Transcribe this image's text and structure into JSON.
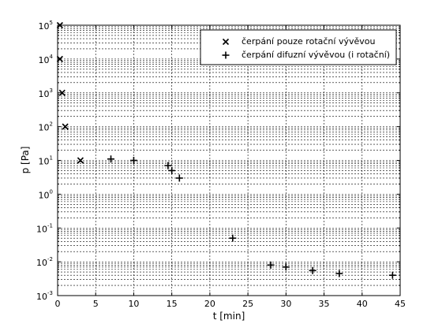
{
  "chart_data": {
    "type": "scatter",
    "title": "",
    "xlabel": "t [min]",
    "ylabel": "p [Pa]",
    "xlim": [
      0,
      45
    ],
    "ylim": [
      0.001,
      100000
    ],
    "yscale": "log",
    "grid": true,
    "grid_style": "dashed, major and minor on y, major on x",
    "legend_position": "top-right",
    "xticks": [
      0,
      5,
      10,
      15,
      20,
      25,
      30,
      35,
      40,
      45
    ],
    "xtick_labels": [
      "0",
      "5",
      "10",
      "15",
      "20",
      "25",
      "30",
      "35",
      "40",
      "45"
    ],
    "yticks": [
      {
        "value": 0.001,
        "base": "10",
        "exp": "-3"
      },
      {
        "value": 0.01,
        "base": "10",
        "exp": "-2"
      },
      {
        "value": 0.1,
        "base": "10",
        "exp": "-1"
      },
      {
        "value": 1,
        "base": "10",
        "exp": "0"
      },
      {
        "value": 10,
        "base": "10",
        "exp": "1"
      },
      {
        "value": 100,
        "base": "10",
        "exp": "2"
      },
      {
        "value": 1000,
        "base": "10",
        "exp": "3"
      },
      {
        "value": 10000,
        "base": "10",
        "exp": "4"
      },
      {
        "value": 100000,
        "base": "10",
        "exp": "5"
      }
    ],
    "series": [
      {
        "name": "čerpání pouze rotační vývěvou",
        "marker": "x",
        "color": "#000000",
        "x": [
          0.3,
          0.3,
          0.6,
          1.0,
          3.0
        ],
        "y": [
          100000,
          10000,
          1000,
          100,
          10
        ]
      },
      {
        "name": "čerpání difuzní vývěvou (i rotační)",
        "marker": "+",
        "color": "#000000",
        "x": [
          7.0,
          10.0,
          14.5,
          15.0,
          16.0,
          23.0,
          28.0,
          30.0,
          33.5,
          37.0,
          44.0
        ],
        "y": [
          11,
          10,
          7,
          5,
          3,
          0.05,
          0.008,
          0.007,
          0.0055,
          0.0045,
          0.004
        ]
      }
    ]
  }
}
